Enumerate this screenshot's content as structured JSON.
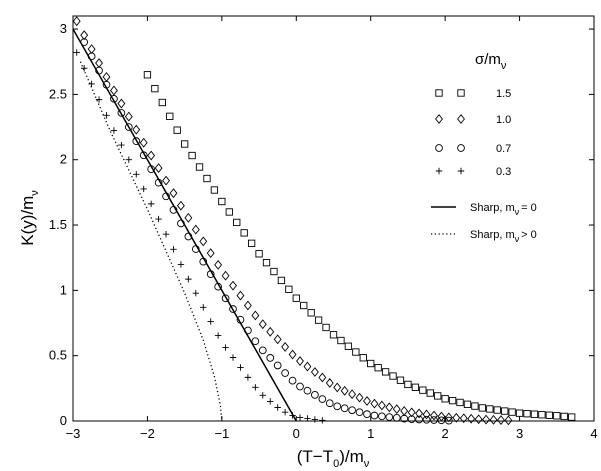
{
  "chart_data": {
    "type": "scatter",
    "xlabel": {
      "main": "(T−T",
      "sub1": "0",
      "mid": ")/m",
      "sub2": "ν"
    },
    "ylabel": {
      "main": "K(y)/m",
      "sub": "ν"
    },
    "xlim": [
      -3,
      4
    ],
    "ylim": [
      0,
      3.1
    ],
    "grid": false,
    "legend_placement": "top-right",
    "x_ticks": [
      "−3",
      "−2",
      "−1",
      "0",
      "1",
      "2",
      "3",
      "4"
    ],
    "y_ticks": [
      "0",
      "0.5",
      "1",
      "1.5",
      "2",
      "2.5",
      "3"
    ],
    "legend": {
      "title": {
        "main": "σ/m",
        "sub": "ν"
      },
      "entries": [
        {
          "label": "1.5",
          "marker": "square"
        },
        {
          "label": "1.0",
          "marker": "diamond"
        },
        {
          "label": "0.7",
          "marker": "circle"
        },
        {
          "label": "0.3",
          "marker": "plus"
        },
        {
          "label_main": "Sharp, m",
          "label_sub": "ν",
          "label_tail": "= 0",
          "style": "solid"
        },
        {
          "label_main": "Sharp, m",
          "label_sub": "ν",
          "label_tail": "> 0",
          "style": "dotted"
        }
      ]
    },
    "series": [
      {
        "marker": "square",
        "x_start": -2.0,
        "x_end": 3.7,
        "count": 58,
        "anchors": [
          [
            -2.0,
            2.65
          ],
          [
            -1.5,
            2.12
          ],
          [
            -1.0,
            1.68
          ],
          [
            -0.5,
            1.28
          ],
          [
            0.0,
            0.94
          ],
          [
            0.5,
            0.66
          ],
          [
            1.0,
            0.44
          ],
          [
            1.5,
            0.28
          ],
          [
            2.0,
            0.17
          ],
          [
            2.5,
            0.1
          ],
          [
            3.0,
            0.06
          ],
          [
            3.5,
            0.04
          ],
          [
            3.7,
            0.03
          ]
        ]
      },
      {
        "marker": "diamond",
        "x_start": -2.95,
        "x_end": 2.85,
        "count": 59,
        "anchors": [
          [
            -2.95,
            3.06
          ],
          [
            -2.5,
            2.58
          ],
          [
            -2.0,
            2.08
          ],
          [
            -1.5,
            1.6
          ],
          [
            -1.0,
            1.15
          ],
          [
            -0.5,
            0.77
          ],
          [
            0.0,
            0.48
          ],
          [
            0.5,
            0.27
          ],
          [
            1.0,
            0.14
          ],
          [
            1.5,
            0.07
          ],
          [
            2.0,
            0.03
          ],
          [
            2.5,
            0.012
          ],
          [
            2.85,
            0.005
          ]
        ]
      },
      {
        "marker": "circle",
        "x_start": -2.85,
        "x_end": 2.05,
        "count": 50,
        "anchors": [
          [
            -2.85,
            2.9
          ],
          [
            -2.5,
            2.52
          ],
          [
            -2.0,
            1.98
          ],
          [
            -1.5,
            1.46
          ],
          [
            -1.0,
            0.98
          ],
          [
            -0.5,
            0.57
          ],
          [
            0.0,
            0.28
          ],
          [
            0.5,
            0.12
          ],
          [
            1.0,
            0.045
          ],
          [
            1.5,
            0.015
          ],
          [
            2.05,
            0.003
          ]
        ]
      },
      {
        "marker": "plus",
        "x_start": -2.95,
        "x_end": 0.35,
        "count": 34,
        "anchors": [
          [
            -2.95,
            2.82
          ],
          [
            -2.5,
            2.28
          ],
          [
            -2.0,
            1.72
          ],
          [
            -1.5,
            1.14
          ],
          [
            -1.0,
            0.6
          ],
          [
            -0.5,
            0.22
          ],
          [
            -0.2,
            0.08
          ],
          [
            0.0,
            0.03
          ],
          [
            0.35,
            0.005
          ]
        ]
      }
    ],
    "lines": [
      {
        "style": "solid",
        "points": [
          [
            -3,
            3.0
          ],
          [
            0,
            0
          ]
        ]
      },
      {
        "style": "dotted",
        "points": [
          [
            -2.9,
            2.75
          ],
          [
            -2.5,
            2.22
          ],
          [
            -2.0,
            1.62
          ],
          [
            -1.5,
            0.98
          ],
          [
            -1.25,
            0.62
          ],
          [
            -1.1,
            0.34
          ],
          [
            -1.02,
            0.12
          ],
          [
            -1.0,
            0
          ]
        ]
      }
    ]
  }
}
